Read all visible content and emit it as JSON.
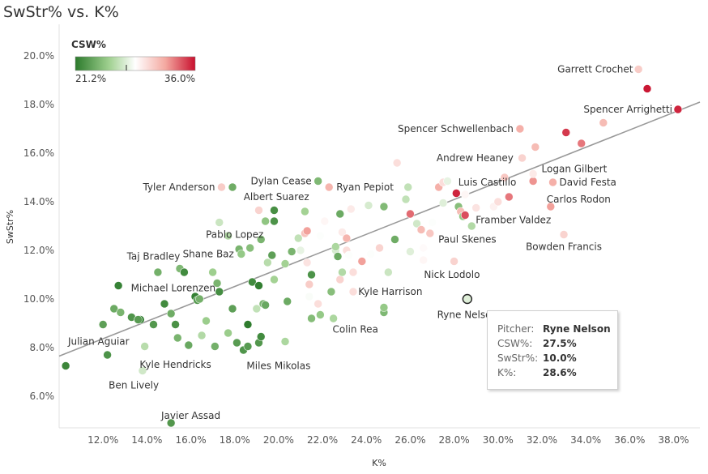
{
  "chart_data": {
    "type": "scatter",
    "title": "SwStr% vs. K%",
    "xlabel": "K%",
    "ylabel": "SwStr%",
    "xlim": [
      10.0,
      39.2
    ],
    "ylim": [
      4.7,
      21.3
    ],
    "xticks": [
      "12.0%",
      "14.0%",
      "16.0%",
      "18.0%",
      "20.0%",
      "22.0%",
      "24.0%",
      "26.0%",
      "28.0%",
      "30.0%",
      "32.0%",
      "34.0%",
      "36.0%",
      "38.0%"
    ],
    "xtick_values": [
      12,
      14,
      16,
      18,
      20,
      22,
      24,
      26,
      28,
      30,
      32,
      34,
      36,
      38
    ],
    "yticks": [
      "6.0%",
      "8.0%",
      "10.0%",
      "12.0%",
      "14.0%",
      "16.0%",
      "18.0%",
      "20.0%"
    ],
    "ytick_values": [
      6,
      8,
      10,
      12,
      14,
      16,
      18,
      20
    ],
    "trendline": {
      "x1": 10.0,
      "y1": 7.65,
      "x2": 39.2,
      "y2": 18.1
    },
    "legend": {
      "title": "CSW%",
      "min_label": "21.2%",
      "max_label": "36.0%",
      "min": 21.2,
      "max": 36.0,
      "marker": 27.5,
      "colors": [
        "#2c7a2c",
        "#9fd08f",
        "#ffffff",
        "#f4a9a1",
        "#c8102e"
      ]
    },
    "points": [
      {
        "x": 10.3,
        "y": 7.25,
        "csw": 21.8
      },
      {
        "x": 12.0,
        "y": 8.95,
        "csw": 23.0
      },
      {
        "x": 12.2,
        "y": 7.7,
        "csw": 22.4
      },
      {
        "x": 12.5,
        "y": 9.6,
        "csw": 23.5
      },
      {
        "x": 12.7,
        "y": 10.55,
        "csw": 21.6
      },
      {
        "x": 12.8,
        "y": 9.45,
        "csw": 24.0
      },
      {
        "x": 13.3,
        "y": 9.25,
        "csw": 22.5
      },
      {
        "x": 13.7,
        "y": 9.15,
        "csw": 21.3
      },
      {
        "x": 13.6,
        "y": 9.15,
        "csw": 22.8
      },
      {
        "x": 13.9,
        "y": 8.05,
        "csw": 26.2
      },
      {
        "x": 13.8,
        "y": 7.05,
        "csw": 27.0
      },
      {
        "x": 14.3,
        "y": 8.95,
        "csw": 22.6
      },
      {
        "x": 14.5,
        "y": 11.1,
        "csw": 23.8
      },
      {
        "x": 14.8,
        "y": 9.8,
        "csw": 22.0
      },
      {
        "x": 15.1,
        "y": 9.4,
        "csw": 23.6
      },
      {
        "x": 15.3,
        "y": 8.95,
        "csw": 22.3
      },
      {
        "x": 15.4,
        "y": 8.4,
        "csw": 24.0
      },
      {
        "x": 15.5,
        "y": 11.25,
        "csw": 24.2
      },
      {
        "x": 15.7,
        "y": 11.1,
        "csw": 22.0
      },
      {
        "x": 15.9,
        "y": 8.1,
        "csw": 23.4
      },
      {
        "x": 15.1,
        "y": 4.9,
        "csw": 22.6
      },
      {
        "x": 16.2,
        "y": 10.1,
        "csw": 21.5
      },
      {
        "x": 16.3,
        "y": 9.95,
        "csw": 22.7
      },
      {
        "x": 16.4,
        "y": 10.0,
        "csw": 23.8
      },
      {
        "x": 16.5,
        "y": 8.5,
        "csw": 26.0
      },
      {
        "x": 16.7,
        "y": 9.1,
        "csw": 25.2
      },
      {
        "x": 17.0,
        "y": 11.1,
        "csw": 25.3
      },
      {
        "x": 17.1,
        "y": 8.05,
        "csw": 23.8
      },
      {
        "x": 17.2,
        "y": 10.65,
        "csw": 24.0
      },
      {
        "x": 17.3,
        "y": 13.15,
        "csw": 26.8
      },
      {
        "x": 17.3,
        "y": 10.3,
        "csw": 22.1
      },
      {
        "x": 17.4,
        "y": 14.6,
        "csw": 30.8
      },
      {
        "x": 17.9,
        "y": 14.6,
        "csw": 23.6
      },
      {
        "x": 17.7,
        "y": 12.6,
        "csw": 26.0
      },
      {
        "x": 17.7,
        "y": 8.6,
        "csw": 25.2
      },
      {
        "x": 17.9,
        "y": 9.6,
        "csw": 23.0
      },
      {
        "x": 18.1,
        "y": 8.2,
        "csw": 22.8
      },
      {
        "x": 18.2,
        "y": 12.05,
        "csw": 24.0
      },
      {
        "x": 18.3,
        "y": 11.85,
        "csw": 25.0
      },
      {
        "x": 18.4,
        "y": 7.9,
        "csw": 22.5
      },
      {
        "x": 18.6,
        "y": 8.95,
        "csw": 21.3
      },
      {
        "x": 18.6,
        "y": 8.05,
        "csw": 22.8
      },
      {
        "x": 18.7,
        "y": 12.1,
        "csw": 24.5
      },
      {
        "x": 18.8,
        "y": 10.7,
        "csw": 22.0
      },
      {
        "x": 19.0,
        "y": 9.6,
        "csw": 26.5
      },
      {
        "x": 19.1,
        "y": 13.65,
        "csw": 30.5
      },
      {
        "x": 19.1,
        "y": 8.2,
        "csw": 22.6
      },
      {
        "x": 19.1,
        "y": 10.55,
        "csw": 21.4
      },
      {
        "x": 19.2,
        "y": 12.45,
        "csw": 24.0
      },
      {
        "x": 19.2,
        "y": 8.45,
        "csw": 22.0
      },
      {
        "x": 19.3,
        "y": 9.8,
        "csw": 24.0
      },
      {
        "x": 19.4,
        "y": 13.2,
        "csw": 24.8
      },
      {
        "x": 19.4,
        "y": 9.75,
        "csw": 23.4
      },
      {
        "x": 19.5,
        "y": 11.5,
        "csw": 26.2
      },
      {
        "x": 19.7,
        "y": 11.8,
        "csw": 23.0
      },
      {
        "x": 19.8,
        "y": 13.2,
        "csw": 22.4
      },
      {
        "x": 19.8,
        "y": 13.65,
        "csw": 22.2
      },
      {
        "x": 19.8,
        "y": 10.8,
        "csw": 25.5
      },
      {
        "x": 20.3,
        "y": 8.25,
        "csw": 25.8
      },
      {
        "x": 20.3,
        "y": 11.45,
        "csw": 25.5
      },
      {
        "x": 20.4,
        "y": 9.9,
        "csw": 23.5
      },
      {
        "x": 20.6,
        "y": 11.95,
        "csw": 24.0
      },
      {
        "x": 20.9,
        "y": 12.5,
        "csw": 26.5
      },
      {
        "x": 21.0,
        "y": 12.0,
        "csw": 27.8
      },
      {
        "x": 21.2,
        "y": 13.6,
        "csw": 25.5
      },
      {
        "x": 21.2,
        "y": 12.7,
        "csw": 31.2
      },
      {
        "x": 21.3,
        "y": 12.8,
        "csw": 32.5
      },
      {
        "x": 21.3,
        "y": 11.5,
        "csw": 29.8
      },
      {
        "x": 21.4,
        "y": 10.1,
        "csw": 28.4
      },
      {
        "x": 21.4,
        "y": 10.6,
        "csw": 30.8
      },
      {
        "x": 21.5,
        "y": 11.0,
        "csw": 22.4
      },
      {
        "x": 21.5,
        "y": 9.2,
        "csw": 24.4
      },
      {
        "x": 21.8,
        "y": 14.85,
        "csw": 24.2
      },
      {
        "x": 21.8,
        "y": 9.8,
        "csw": 30.0
      },
      {
        "x": 21.9,
        "y": 12.6,
        "csw": 28.5
      },
      {
        "x": 21.9,
        "y": 9.35,
        "csw": 25.0
      },
      {
        "x": 22.1,
        "y": 13.2,
        "csw": 29.0
      },
      {
        "x": 22.3,
        "y": 14.6,
        "csw": 31.8
      },
      {
        "x": 22.4,
        "y": 10.3,
        "csw": 24.5
      },
      {
        "x": 22.5,
        "y": 9.2,
        "csw": 25.8
      },
      {
        "x": 22.6,
        "y": 12.0,
        "csw": 27.2
      },
      {
        "x": 22.6,
        "y": 12.15,
        "csw": 25.8
      },
      {
        "x": 22.7,
        "y": 11.75,
        "csw": 23.5
      },
      {
        "x": 22.8,
        "y": 13.5,
        "csw": 23.5
      },
      {
        "x": 22.8,
        "y": 10.8,
        "csw": 30.5
      },
      {
        "x": 22.9,
        "y": 11.1,
        "csw": 26.0
      },
      {
        "x": 22.9,
        "y": 12.75,
        "csw": 29.5
      },
      {
        "x": 23.1,
        "y": 12.5,
        "csw": 31.8
      },
      {
        "x": 23.1,
        "y": 12.0,
        "csw": 30.0
      },
      {
        "x": 23.2,
        "y": 11.8,
        "csw": 28.5
      },
      {
        "x": 23.3,
        "y": 13.7,
        "csw": 29.5
      },
      {
        "x": 23.4,
        "y": 11.1,
        "csw": 30.0
      },
      {
        "x": 23.4,
        "y": 10.3,
        "csw": 30.0
      },
      {
        "x": 23.8,
        "y": 11.55,
        "csw": 32.5
      },
      {
        "x": 24.1,
        "y": 13.85,
        "csw": 27.2
      },
      {
        "x": 24.2,
        "y": 11.85,
        "csw": 28.5
      },
      {
        "x": 24.6,
        "y": 12.1,
        "csw": 30.5
      },
      {
        "x": 24.8,
        "y": 13.8,
        "csw": 24.3
      },
      {
        "x": 24.8,
        "y": 9.45,
        "csw": 24.2
      },
      {
        "x": 24.8,
        "y": 9.65,
        "csw": 25.0
      },
      {
        "x": 25.0,
        "y": 11.1,
        "csw": 26.8
      },
      {
        "x": 25.3,
        "y": 12.45,
        "csw": 23.6
      },
      {
        "x": 25.4,
        "y": 15.6,
        "csw": 30.0
      },
      {
        "x": 25.8,
        "y": 14.1,
        "csw": 26.5
      },
      {
        "x": 25.9,
        "y": 14.6,
        "csw": 26.5
      },
      {
        "x": 26.0,
        "y": 11.95,
        "csw": 27.5
      },
      {
        "x": 26.0,
        "y": 13.5,
        "csw": 33.8
      },
      {
        "x": 26.3,
        "y": 13.1,
        "csw": 27.0
      },
      {
        "x": 26.5,
        "y": 12.85,
        "csw": 31.5
      },
      {
        "x": 26.6,
        "y": 11.6,
        "csw": 29.0
      },
      {
        "x": 26.6,
        "y": 12.1,
        "csw": 28.8
      },
      {
        "x": 26.9,
        "y": 12.7,
        "csw": 31.0
      },
      {
        "x": 27.0,
        "y": 13.15,
        "csw": 28.5
      },
      {
        "x": 27.3,
        "y": 14.6,
        "csw": 32.0
      },
      {
        "x": 27.5,
        "y": 14.8,
        "csw": 30.0
      },
      {
        "x": 27.5,
        "y": 13.95,
        "csw": 27.5
      },
      {
        "x": 27.7,
        "y": 14.85,
        "csw": 27.8
      },
      {
        "x": 28.0,
        "y": 11.55,
        "csw": 30.5
      },
      {
        "x": 28.1,
        "y": 14.35,
        "csw": 35.5
      },
      {
        "x": 28.2,
        "y": 13.8,
        "csw": 24.5
      },
      {
        "x": 28.3,
        "y": 13.6,
        "csw": 31.5
      },
      {
        "x": 28.4,
        "y": 13.4,
        "csw": 25.0
      },
      {
        "x": 28.5,
        "y": 13.45,
        "csw": 34.5
      },
      {
        "x": 28.5,
        "y": 14.3,
        "csw": 29.0
      },
      {
        "x": 28.6,
        "y": 10.0,
        "csw": 27.5
      },
      {
        "x": 28.8,
        "y": 13.0,
        "csw": 26.0
      },
      {
        "x": 29.0,
        "y": 13.75,
        "csw": 29.8
      },
      {
        "x": 29.8,
        "y": 13.8,
        "csw": 29.2
      },
      {
        "x": 30.0,
        "y": 14.0,
        "csw": 30.0
      },
      {
        "x": 30.3,
        "y": 15.0,
        "csw": 31.0
      },
      {
        "x": 30.5,
        "y": 14.2,
        "csw": 33.5
      },
      {
        "x": 31.0,
        "y": 17.0,
        "csw": 32.0
      },
      {
        "x": 31.1,
        "y": 15.8,
        "csw": 30.5
      },
      {
        "x": 31.6,
        "y": 14.85,
        "csw": 32.8
      },
      {
        "x": 31.6,
        "y": 15.15,
        "csw": 29.5
      },
      {
        "x": 31.7,
        "y": 16.25,
        "csw": 31.5
      },
      {
        "x": 32.4,
        "y": 13.8,
        "csw": 32.5
      },
      {
        "x": 32.5,
        "y": 14.8,
        "csw": 32.0
      },
      {
        "x": 33.0,
        "y": 12.65,
        "csw": 30.5
      },
      {
        "x": 33.1,
        "y": 16.85,
        "csw": 35.0
      },
      {
        "x": 33.8,
        "y": 16.4,
        "csw": 33.5
      },
      {
        "x": 34.8,
        "y": 17.25,
        "csw": 31.5
      },
      {
        "x": 36.4,
        "y": 19.45,
        "csw": 30.8
      },
      {
        "x": 36.8,
        "y": 18.65,
        "csw": 35.8
      },
      {
        "x": 38.2,
        "y": 17.8,
        "csw": 35.5
      }
    ],
    "annotations": [
      {
        "text": "Garrett Crochet",
        "x": 36.45,
        "y": 19.45,
        "anchor": "end",
        "dx": -8,
        "dy": 4
      },
      {
        "text": "Spencer Arrighetti",
        "x": 38.2,
        "y": 17.8,
        "anchor": "end",
        "dx": -7,
        "dy": 4
      },
      {
        "text": "Spencer Schwellenbach",
        "x": 31.0,
        "y": 17.0,
        "anchor": "end",
        "dx": -8,
        "dy": 4
      },
      {
        "text": "Andrew Heaney",
        "x": 31.0,
        "y": 15.8,
        "anchor": "end",
        "dx": -8,
        "dy": 4
      },
      {
        "text": "Logan Gilbert",
        "x": 31.8,
        "y": 15.35,
        "anchor": "start",
        "dx": 5,
        "dy": 4
      },
      {
        "text": "Luis Castillo",
        "x": 31.2,
        "y": 14.8,
        "anchor": "end",
        "dx": -10,
        "dy": 4
      },
      {
        "text": "David Festa",
        "x": 32.5,
        "y": 14.8,
        "anchor": "start",
        "dx": 8,
        "dy": 4
      },
      {
        "text": "Carlos Rodon",
        "x": 32.4,
        "y": 14.1,
        "anchor": "start",
        "dx": -5,
        "dy": 4
      },
      {
        "text": "Framber Valdez",
        "x": 30.7,
        "y": 13.25,
        "anchor": "middle",
        "dx": 0,
        "dy": 4
      },
      {
        "text": "Paul Skenes",
        "x": 28.6,
        "y": 12.45,
        "anchor": "middle",
        "dx": 0,
        "dy": 4
      },
      {
        "text": "Bowden Francis",
        "x": 33.0,
        "y": 12.15,
        "anchor": "middle",
        "dx": 0,
        "dy": 4
      },
      {
        "text": "Nick Lodolo",
        "x": 27.9,
        "y": 11.0,
        "anchor": "middle",
        "dx": 0,
        "dy": 4
      },
      {
        "text": "Ryne Nelson",
        "x": 28.6,
        "y": 9.35,
        "anchor": "middle",
        "dx": 0,
        "dy": 4
      },
      {
        "text": "Kyle Harrison",
        "x": 23.3,
        "y": 10.3,
        "anchor": "start",
        "dx": 9,
        "dy": 4
      },
      {
        "text": "Colin Rea",
        "x": 23.5,
        "y": 8.75,
        "anchor": "middle",
        "dx": 0,
        "dy": 4
      },
      {
        "text": "Dylan Cease",
        "x": 21.8,
        "y": 14.85,
        "anchor": "end",
        "dx": -8,
        "dy": 4
      },
      {
        "text": "Ryan Pepiot",
        "x": 22.3,
        "y": 14.6,
        "anchor": "start",
        "dx": 9,
        "dy": 4
      },
      {
        "text": "Albert Suarez",
        "x": 19.9,
        "y": 14.2,
        "anchor": "middle",
        "dx": 0,
        "dy": 4
      },
      {
        "text": "Tyler Anderson",
        "x": 17.4,
        "y": 14.6,
        "anchor": "end",
        "dx": -8,
        "dy": 4
      },
      {
        "text": "Pablo Lopez",
        "x": 18.0,
        "y": 12.65,
        "anchor": "middle",
        "dx": 0,
        "dy": 4
      },
      {
        "text": "Shane Baz",
        "x": 16.8,
        "y": 11.85,
        "anchor": "middle",
        "dx": 0,
        "dy": 4
      },
      {
        "text": "Taj Bradley",
        "x": 14.3,
        "y": 11.75,
        "anchor": "middle",
        "dx": 0,
        "dy": 4
      },
      {
        "text": "Michael Lorenzen",
        "x": 15.2,
        "y": 10.45,
        "anchor": "middle",
        "dx": 0,
        "dy": 4
      },
      {
        "text": "Julian Aguiar",
        "x": 11.8,
        "y": 8.25,
        "anchor": "middle",
        "dx": 0,
        "dy": 4
      },
      {
        "text": "Kyle Hendricks",
        "x": 15.3,
        "y": 7.3,
        "anchor": "middle",
        "dx": 0,
        "dy": 4
      },
      {
        "text": "Ben Lively",
        "x": 13.4,
        "y": 6.45,
        "anchor": "middle",
        "dx": 0,
        "dy": 4
      },
      {
        "text": "Miles Mikolas",
        "x": 20.0,
        "y": 7.25,
        "anchor": "middle",
        "dx": 0,
        "dy": 4
      },
      {
        "text": "Javier Assad",
        "x": 16.0,
        "y": 5.2,
        "anchor": "middle",
        "dx": 0,
        "dy": 4
      }
    ],
    "highlight": {
      "x": 28.6,
      "y": 10.0
    }
  },
  "tooltip": {
    "pitcher_label": "Pitcher:",
    "pitcher_value": "Ryne Nelson",
    "csw_label": "CSW%:",
    "csw_value": "27.5%",
    "swstr_label": "SwStr%:",
    "swstr_value": "10.0%",
    "k_label": "K%:",
    "k_value": "28.6%"
  }
}
